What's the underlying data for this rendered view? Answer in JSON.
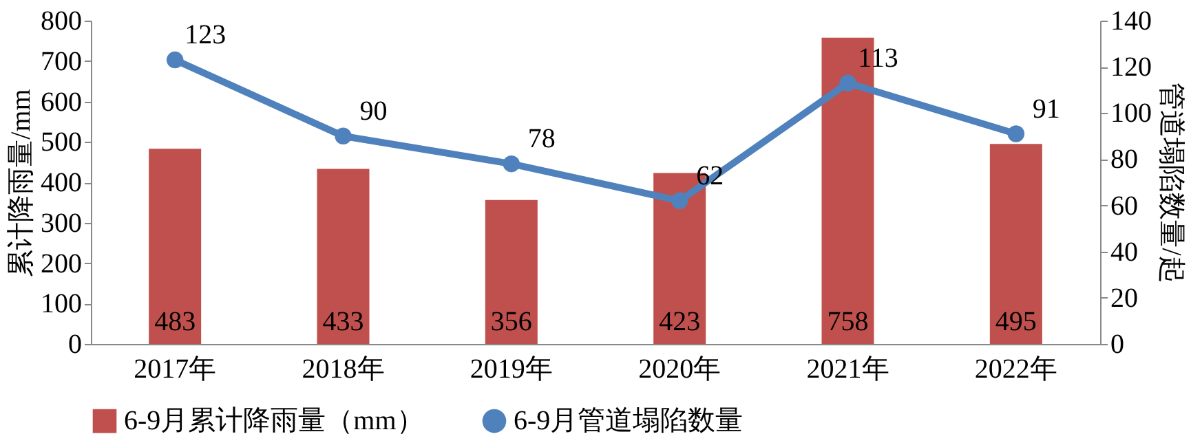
{
  "chart_data": {
    "type": "bar",
    "categories": [
      "2017年",
      "2018年",
      "2019年",
      "2020年",
      "2021年",
      "2022年"
    ],
    "ylabel": "累计降雨量/mm",
    "y2label": "管道塌陷数量/起",
    "ylim": [
      0,
      800
    ],
    "yticks": [
      0,
      100,
      200,
      300,
      400,
      500,
      600,
      700,
      800
    ],
    "y2lim": [
      0,
      140
    ],
    "y2ticks": [
      0,
      20,
      40,
      60,
      80,
      100,
      120,
      140
    ],
    "series": [
      {
        "name": "6-9月累计降雨量（mm）",
        "color": "#c0504d",
        "values": [
          483,
          433,
          356,
          423,
          758,
          495
        ]
      },
      {
        "name": "6-9月管道塌陷数量",
        "type": "line",
        "axis": "y2",
        "color": "#4f81bd",
        "values": [
          123,
          90,
          78,
          62,
          113,
          91
        ]
      }
    ],
    "marker": "circle",
    "data_labels": true,
    "legend": "bottom"
  }
}
